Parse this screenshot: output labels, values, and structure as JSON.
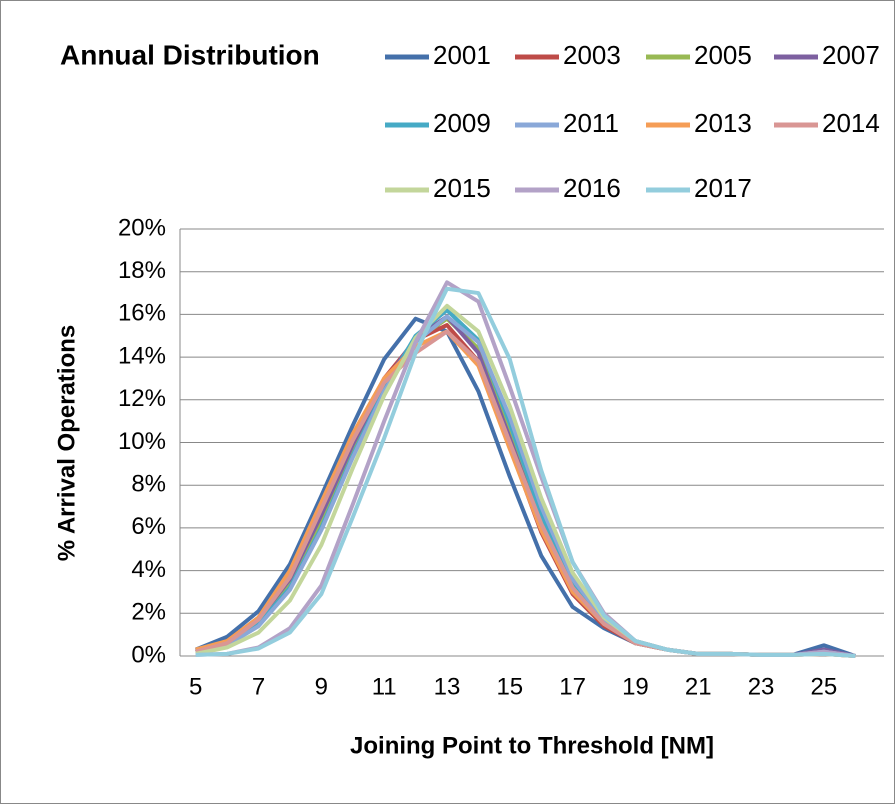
{
  "chart_data": {
    "type": "line",
    "title": "Annual Distribution",
    "x_label": "Joining Point to Threshold [NM]",
    "y_label": "% Arrival Operations",
    "categories": [
      "5",
      null,
      "7",
      null,
      "9",
      null,
      "11",
      null,
      "13",
      null,
      "15",
      null,
      "17",
      null,
      "19",
      null,
      "21",
      null,
      "23",
      null,
      "25",
      null
    ],
    "ylim": [
      0,
      20
    ],
    "yticks": [
      {
        "value": 0,
        "label": "0%"
      },
      {
        "value": 2,
        "label": "2%"
      },
      {
        "value": 4,
        "label": "4%"
      },
      {
        "value": 6,
        "label": "6%"
      },
      {
        "value": 8,
        "label": "8%"
      },
      {
        "value": 10,
        "label": "10%"
      },
      {
        "value": 12,
        "label": "12%"
      },
      {
        "value": 14,
        "label": "14%"
      },
      {
        "value": 16,
        "label": "16%"
      },
      {
        "value": 18,
        "label": "18%"
      },
      {
        "value": 20,
        "label": "20%"
      }
    ],
    "grid": true,
    "legend": "top",
    "series": [
      {
        "name": "2001",
        "color": "#4470aa",
        "values": [
          0.3,
          0.9,
          2.1,
          4.3,
          7.5,
          10.8,
          13.9,
          15.8,
          15.2,
          12.4,
          8.4,
          4.7,
          2.3,
          1.3,
          0.6,
          0.3,
          0.1,
          0.1,
          0.05,
          0.05,
          0.5,
          0
        ]
      },
      {
        "name": "2003",
        "color": "#be4b48",
        "values": [
          0.2,
          0.7,
          1.8,
          3.9,
          7.0,
          10.2,
          13.0,
          14.8,
          15.5,
          13.8,
          9.8,
          5.8,
          2.9,
          1.4,
          0.6,
          0.3,
          0.1,
          0.1,
          0.05,
          0.05,
          0.1,
          0
        ]
      },
      {
        "name": "2005",
        "color": "#98b954",
        "values": [
          0.2,
          0.5,
          1.5,
          3.3,
          6.2,
          9.6,
          12.6,
          14.8,
          15.8,
          14.4,
          10.6,
          6.5,
          3.3,
          1.6,
          0.7,
          0.3,
          0.1,
          0.1,
          0.05,
          0.05,
          0.2,
          0
        ]
      },
      {
        "name": "2007",
        "color": "#7d60a0",
        "values": [
          0.2,
          0.6,
          1.7,
          3.6,
          6.6,
          9.9,
          12.8,
          14.9,
          15.9,
          14.2,
          10.2,
          6.1,
          3.0,
          1.5,
          0.6,
          0.3,
          0.1,
          0.1,
          0.05,
          0.05,
          0.3,
          0
        ]
      },
      {
        "name": "2009",
        "color": "#46aac5",
        "values": [
          0.2,
          0.6,
          1.5,
          3.2,
          6.0,
          9.4,
          12.5,
          15.0,
          16.2,
          14.8,
          10.9,
          6.6,
          3.3,
          1.6,
          0.6,
          0.3,
          0.1,
          0.1,
          0.05,
          0.05,
          0.2,
          0
        ]
      },
      {
        "name": "2011",
        "color": "#8aa8d8",
        "values": [
          0.2,
          0.5,
          1.4,
          3.1,
          5.9,
          9.3,
          12.4,
          14.7,
          15.9,
          14.7,
          11.2,
          7.0,
          3.6,
          1.7,
          0.7,
          0.3,
          0.1,
          0.1,
          0.05,
          0.05,
          0.2,
          0
        ]
      },
      {
        "name": "2013",
        "color": "#f59d56",
        "values": [
          0.3,
          0.7,
          1.8,
          4.0,
          7.2,
          10.4,
          13.0,
          14.5,
          15.2,
          13.6,
          9.7,
          5.9,
          3.0,
          1.5,
          0.6,
          0.3,
          0.1,
          0.1,
          0.05,
          0.05,
          0.1,
          0
        ]
      },
      {
        "name": "2014",
        "color": "#d99694",
        "values": [
          0.2,
          0.6,
          1.7,
          3.7,
          6.9,
          10.1,
          12.8,
          14.2,
          15.2,
          13.8,
          10.0,
          6.2,
          3.2,
          1.5,
          0.6,
          0.3,
          0.1,
          0.1,
          0.05,
          0.05,
          0.1,
          0
        ]
      },
      {
        "name": "2015",
        "color": "#c3d69b",
        "values": [
          0.1,
          0.4,
          1.1,
          2.6,
          5.2,
          8.8,
          12.2,
          14.9,
          16.4,
          15.2,
          11.7,
          7.4,
          3.9,
          1.8,
          0.7,
          0.3,
          0.1,
          0.1,
          0.05,
          0.05,
          0.1,
          0
        ]
      },
      {
        "name": "2016",
        "color": "#b3a2c7",
        "values": [
          0.05,
          0.1,
          0.4,
          1.3,
          3.3,
          7.1,
          11.0,
          14.7,
          17.5,
          16.6,
          12.6,
          8.4,
          4.4,
          2.0,
          0.7,
          0.3,
          0.1,
          0.1,
          0.05,
          0.05,
          0.2,
          0
        ]
      },
      {
        "name": "2017",
        "color": "#93cddd",
        "values": [
          0.05,
          0.1,
          0.35,
          1.1,
          2.9,
          6.5,
          10.2,
          14.2,
          17.2,
          17.0,
          13.9,
          8.7,
          4.4,
          1.9,
          0.7,
          0.3,
          0.1,
          0.1,
          0.05,
          0.05,
          0.1,
          0
        ]
      }
    ]
  }
}
